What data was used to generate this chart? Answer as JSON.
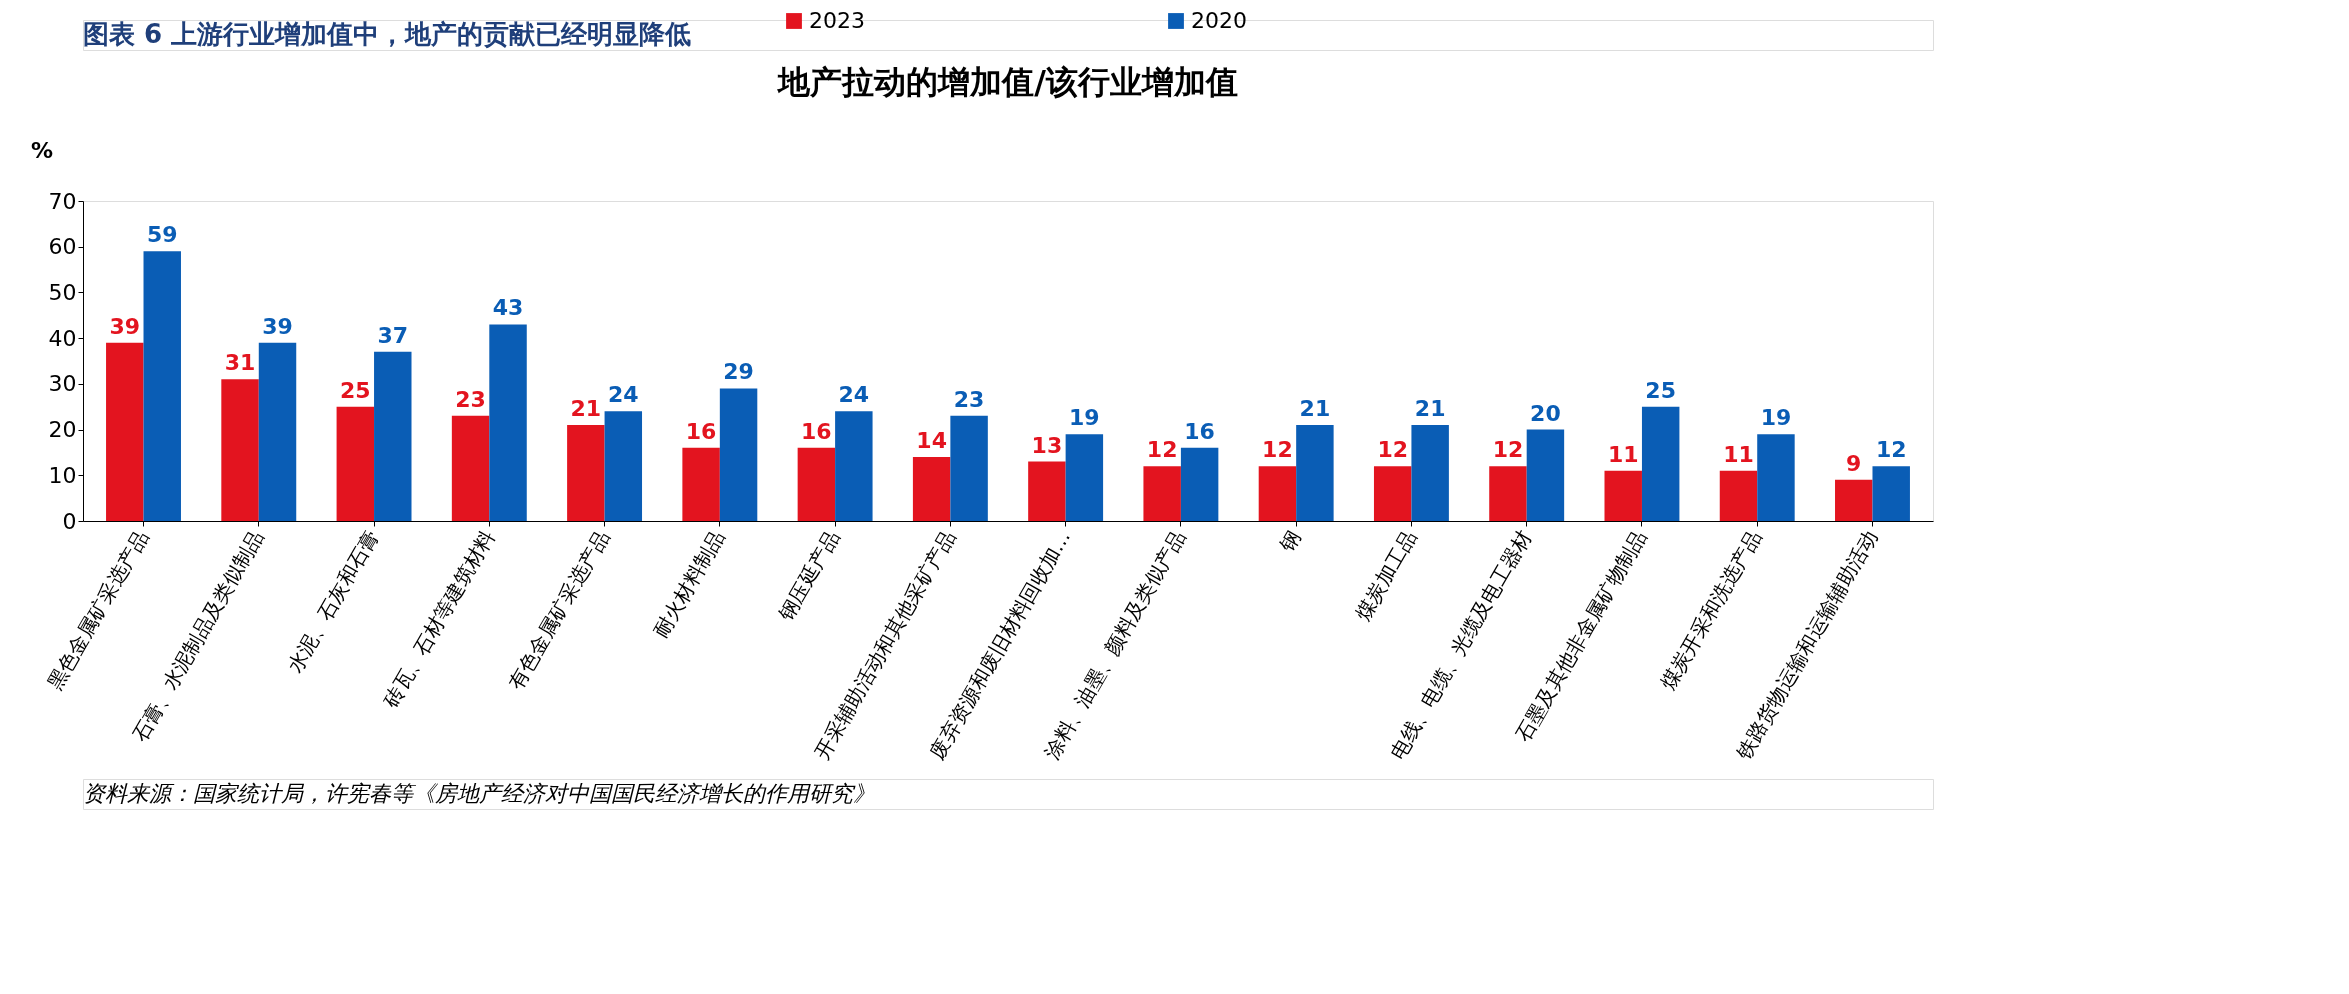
{
  "chart_data": {
    "type": "bar",
    "title": "图表 6   上游行业增加值中，地产的贡献已经明显降低",
    "subtitle": "地产拉动的增加值/该行业增加值",
    "ylabel": "%",
    "categories": [
      "黑色金属矿采选产品",
      "石膏、水泥制品及类似制品",
      "水泥、石灰和石膏",
      "砖瓦、石材等建筑材料",
      "有色金属矿采选产品",
      "耐火材料制品",
      "钢压延产品",
      "开采辅助活动和其他采矿产品",
      "废弃资源和废旧材料回收加…",
      "涂料、油墨、颜料及类似产品",
      "钢",
      "煤炭加工品",
      "电线、电缆、光缆及电工器材",
      "石墨及其他非金属矿物制品",
      "煤炭开采和洗选产品",
      "铁路货物运输和运输辅助活动"
    ],
    "series": [
      {
        "name": "2023",
        "color": "#e3141f",
        "values": [
          39,
          31,
          25,
          23,
          21,
          16,
          16,
          14,
          13,
          12,
          12,
          12,
          12,
          11,
          11,
          9
        ]
      },
      {
        "name": "2020",
        "color": "#0a5db5",
        "values": [
          59,
          39,
          37,
          43,
          24,
          29,
          24,
          23,
          19,
          16,
          21,
          21,
          20,
          25,
          19,
          12
        ]
      }
    ],
    "ylim": [
      0,
      70
    ],
    "yticks": [
      0,
      10,
      20,
      30,
      40,
      50,
      60,
      70
    ],
    "grid": false,
    "legend": "top",
    "data_labels": true,
    "annotations": [
      "资料来源：国家统计局，许宪春等《房地产经济对中国国民经济增长的作用研究》"
    ]
  }
}
